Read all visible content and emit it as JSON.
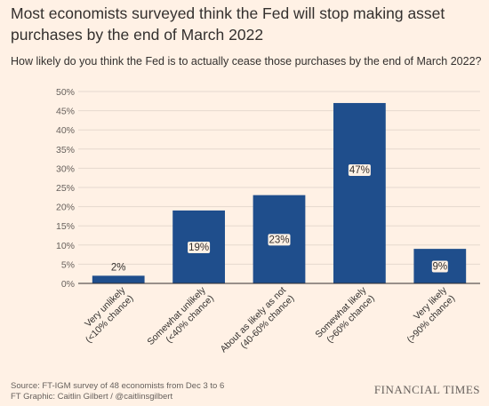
{
  "title": "Most economists surveyed think the Fed will stop making asset purchases by the end of March 2022",
  "subtitle": "How likely do you think the Fed is to actually cease those purchases by the end of March 2022?",
  "source": {
    "line1": "Source: FT-IGM survey of 48 economists from Dec 3 to 6",
    "line2": "FT Graphic: Caitlin Gilbert / @caitlinsgilbert"
  },
  "brand": "FINANCIAL TIMES",
  "colors": {
    "bar": "#1f4e8c",
    "background": "#fff1e5",
    "grid": "#e6d9ce"
  },
  "chart_data": {
    "type": "bar",
    "categories": [
      [
        "Very unlikely",
        "(<10% chance)"
      ],
      [
        "Somewhat unlikely",
        "(<40% chance)"
      ],
      [
        "About as likely as not",
        "(40-60% chance)"
      ],
      [
        "Somewhat likely",
        "(>60% chance)"
      ],
      [
        "Very likely",
        "(>90% chance)"
      ]
    ],
    "values": [
      2,
      19,
      23,
      47,
      9
    ],
    "value_labels": [
      "2%",
      "19%",
      "23%",
      "47%",
      "9%"
    ],
    "ylim": [
      0,
      50
    ],
    "yticks": [
      0,
      5,
      10,
      15,
      20,
      25,
      30,
      35,
      40,
      45,
      50
    ],
    "ytick_labels": [
      "0%",
      "5%",
      "10%",
      "15%",
      "20%",
      "25%",
      "30%",
      "35%",
      "40%",
      "45%",
      "50%"
    ],
    "grid": true,
    "xlabel": "",
    "ylabel": ""
  }
}
